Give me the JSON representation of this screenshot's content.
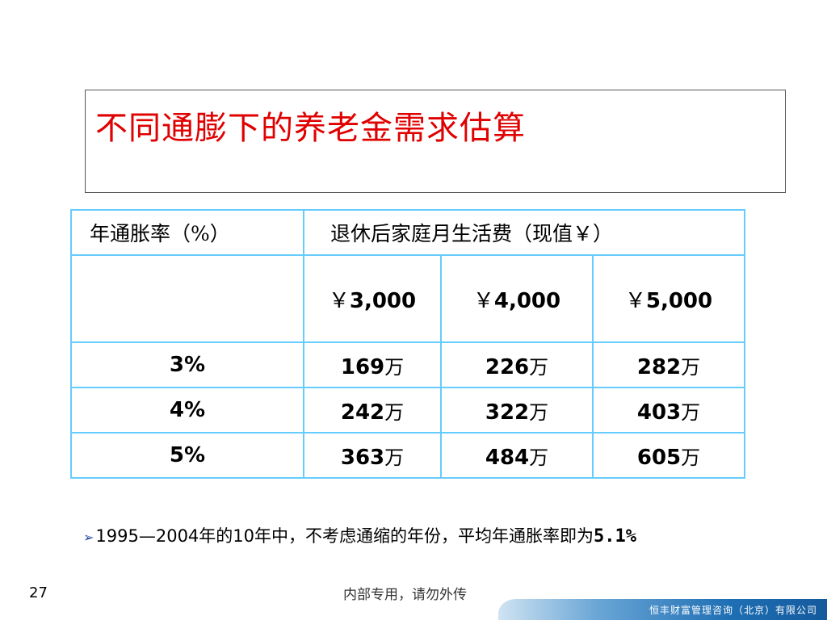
{
  "title": "不同通膨下的养老金需求估算",
  "table": {
    "header_inflation": "年通胀率（%）",
    "header_expense": "退休后家庭月生活费（现值￥）",
    "currency_symbol": "￥",
    "amounts": [
      "3,000",
      "4,000",
      "5,000"
    ],
    "unit": "万",
    "rows": [
      {
        "rate": "3%",
        "values": [
          "169",
          "226",
          "282"
        ]
      },
      {
        "rate": "4%",
        "values": [
          "242",
          "322",
          "403"
        ]
      },
      {
        "rate": "5%",
        "values": [
          "363",
          "484",
          "605"
        ]
      }
    ]
  },
  "note": {
    "bullet": "➢",
    "text": "1995—2004年的10年中，不考虑通缩的年份，平均年通胀率即为",
    "value": "5.1%"
  },
  "page_number": "27",
  "footer": "内部专用，请勿外传",
  "company": "恒丰财富管理咨询（北京）有限公司",
  "colors": {
    "title": "#e00000",
    "table_border": "#66ccff",
    "company_bar": "#1f6fb4"
  }
}
